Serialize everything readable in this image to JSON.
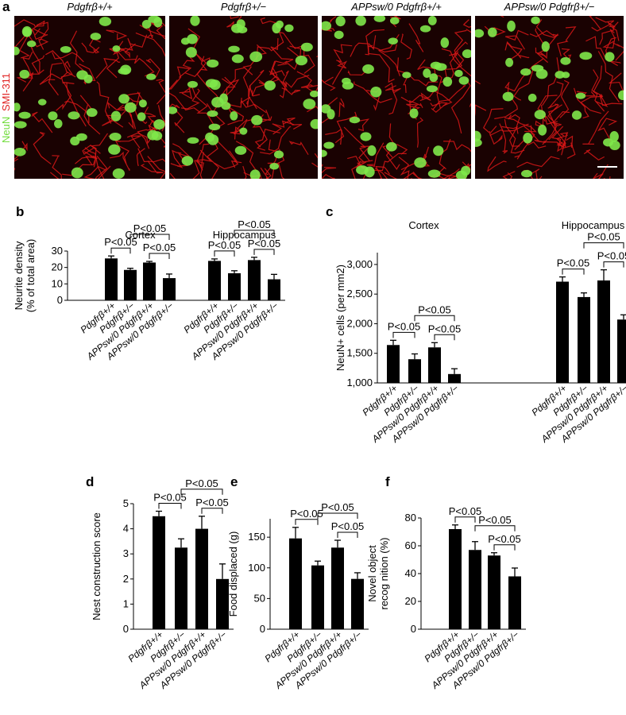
{
  "panel_a": {
    "panel": "a",
    "stain_labels": [
      "NeuN",
      "SMI-311"
    ],
    "image_titles": [
      "Pdgfrβ+/+",
      "Pdgfrβ+/−",
      "APPsw/0 Pdgfrβ+/+",
      "APPsw/0 Pdgfrβ+/−"
    ]
  },
  "chart_data": [
    {
      "type": "bar",
      "panel": "b",
      "ylabel": [
        "Neurite density",
        "(% of total area)"
      ],
      "color": "#000000",
      "ylim": [
        0,
        30
      ],
      "yticks": [
        0,
        10,
        20,
        30
      ],
      "categories": [
        "Pdgfrβ+/+",
        "Pdgfrβ+/−",
        "APPsw/0 Pdgfrβ+/+",
        "APPsw/0 Pdgfrβ+/−"
      ],
      "series": [
        {
          "name": "Cortex",
          "values": [
            25.5,
            18.5,
            23,
            13.5
          ],
          "errors": [
            1.5,
            1,
            0.7,
            2.5
          ],
          "comparisons": [
            {
              "label": "P<0.05",
              "bars": [
                0,
                1
              ]
            },
            {
              "label": "P<0.05",
              "bars": [
                1,
                3
              ]
            },
            {
              "label": "P<0.05",
              "bars": [
                2,
                3
              ]
            }
          ]
        },
        {
          "name": "Hippocampus",
          "values": [
            24,
            16.5,
            24.5,
            12.8
          ],
          "errors": [
            1.2,
            1.5,
            1.7,
            3
          ],
          "comparisons": [
            {
              "label": "P<0.05",
              "bars": [
                0,
                1
              ]
            },
            {
              "label": "P<0.05",
              "bars": [
                1,
                3
              ]
            },
            {
              "label": "P<0.05",
              "bars": [
                2,
                3
              ]
            }
          ]
        }
      ]
    },
    {
      "type": "bar",
      "panel": "c",
      "ylabel": [
        "NeuN+ cells (per mm2)"
      ],
      "color": "#000000",
      "ylim": [
        1000,
        3200
      ],
      "yticks": [
        {
          "value": 1000,
          "label": "1,000"
        },
        {
          "value": 1500,
          "label": "1,500"
        },
        {
          "value": 2000,
          "label": "2,000"
        },
        {
          "value": 2500,
          "label": "2,500"
        },
        {
          "value": 3000,
          "label": "3,000"
        }
      ],
      "categories": [
        "Pdgfrβ+/+",
        "Pdgfrβ+/−",
        "APPsw/0 Pdgfrβ+/+",
        "APPsw/0 Pdgfrβ+/−"
      ],
      "series": [
        {
          "name": "Cortex",
          "values": [
            1640,
            1400,
            1600,
            1150
          ],
          "errors": [
            80,
            90,
            80,
            90
          ],
          "comparisons": [
            {
              "label": "P<0.05",
              "bars": [
                0,
                1
              ]
            },
            {
              "label": "P<0.05",
              "bars": [
                1,
                3
              ]
            },
            {
              "label": "P<0.05",
              "bars": [
                2,
                3
              ]
            }
          ]
        },
        {
          "name": "Hippocampus",
          "values": [
            2710,
            2450,
            2730,
            2070
          ],
          "errors": [
            80,
            70,
            180,
            80
          ],
          "comparisons": [
            {
              "label": "P<0.05",
              "bars": [
                0,
                1
              ]
            },
            {
              "label": "P<0.05",
              "bars": [
                1,
                3
              ]
            },
            {
              "label": "P<0.05",
              "bars": [
                2,
                3
              ]
            }
          ]
        }
      ]
    },
    {
      "type": "bar",
      "panel": "d",
      "ylabel": [
        "Nest construction score"
      ],
      "color": "#000000",
      "ylim": [
        0,
        5
      ],
      "yticks": [
        0,
        1,
        2,
        3,
        4,
        5
      ],
      "categories": [
        "Pdgfrβ+/+",
        "Pdgfrβ+/−",
        "APPsw/0 Pdgfrβ+/+",
        "APPsw/0 Pdgfrβ+/−"
      ],
      "series": [
        {
          "values": [
            4.5,
            3.25,
            4.0,
            2.0
          ],
          "errors": [
            0.2,
            0.35,
            0.5,
            0.6
          ],
          "comparisons": [
            {
              "label": "P<0.05",
              "bars": [
                0,
                1
              ]
            },
            {
              "label": "P<0.05",
              "bars": [
                1,
                3
              ]
            },
            {
              "label": "P<0.05",
              "bars": [
                2,
                3
              ]
            }
          ]
        }
      ]
    },
    {
      "type": "bar",
      "panel": "e",
      "ylabel": [
        "Food displaced (g)"
      ],
      "color": "#000000",
      "ylim": [
        0,
        180
      ],
      "yticks": [
        0,
        50,
        100,
        150
      ],
      "categories": [
        "Pdgfrβ+/+",
        "Pdgfrβ+/−",
        "APPsw/0 Pdgfrβ+/+",
        "APPsw/0 Pdgfrβ+/−"
      ],
      "series": [
        {
          "values": [
            148,
            104,
            133,
            82
          ],
          "errors": [
            18,
            7,
            12,
            10
          ],
          "comparisons": [
            {
              "label": "P<0.05",
              "bars": [
                0,
                1
              ]
            },
            {
              "label": "P<0.05",
              "bars": [
                1,
                3
              ]
            },
            {
              "label": "P<0.05",
              "bars": [
                2,
                3
              ]
            }
          ]
        }
      ]
    },
    {
      "type": "bar",
      "panel": "f",
      "ylabel": [
        "Novel object",
        "recog nition (%)"
      ],
      "color": "#000000",
      "ylim": [
        0,
        80
      ],
      "yticks": [
        0,
        20,
        40,
        60,
        80
      ],
      "categories": [
        "Pdgfrβ+/+",
        "Pdgfrβ+/−",
        "APPsw/0 Pdgfrβ+/+",
        "APPsw/0 Pdgfrβ+/−"
      ],
      "series": [
        {
          "values": [
            72,
            57,
            53,
            38
          ],
          "errors": [
            3,
            6,
            2,
            6
          ],
          "comparisons": [
            {
              "label": "P<0.05",
              "bars": [
                0,
                1
              ]
            },
            {
              "label": "P<0.05",
              "bars": [
                1,
                3
              ]
            },
            {
              "label": "P<0.05",
              "bars": [
                2,
                3
              ]
            }
          ]
        }
      ]
    }
  ]
}
